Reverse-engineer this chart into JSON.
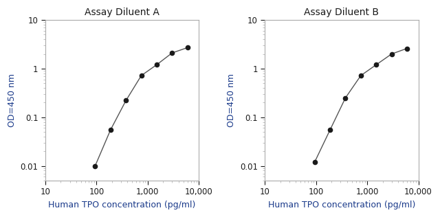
{
  "title_A": "Assay Diluent A",
  "title_B": "Assay Diluent B",
  "xlabel": "Human TPO concentration (pg/ml)",
  "ylabel": "OD=450 nm",
  "plot_A_x": [
    93.75,
    187.5,
    375,
    750,
    1500,
    3000,
    6000
  ],
  "plot_A_y": [
    0.01,
    0.055,
    0.22,
    0.72,
    1.2,
    2.1,
    2.7
  ],
  "plot_B_x": [
    93.75,
    187.5,
    375,
    750,
    1500,
    3000,
    6000
  ],
  "plot_B_y": [
    0.012,
    0.055,
    0.25,
    0.72,
    1.2,
    2.0,
    2.6
  ],
  "xlim": [
    10,
    10000
  ],
  "ylim": [
    0.005,
    10
  ],
  "line_color": "#555555",
  "marker_color": "#1a1a1a",
  "title_color": "#1a1a1a",
  "label_color": "#1a3a8a",
  "tick_color": "#1a1a1a",
  "background_color": "#ffffff",
  "title_fontsize": 10,
  "label_fontsize": 9,
  "tick_fontsize": 8.5
}
